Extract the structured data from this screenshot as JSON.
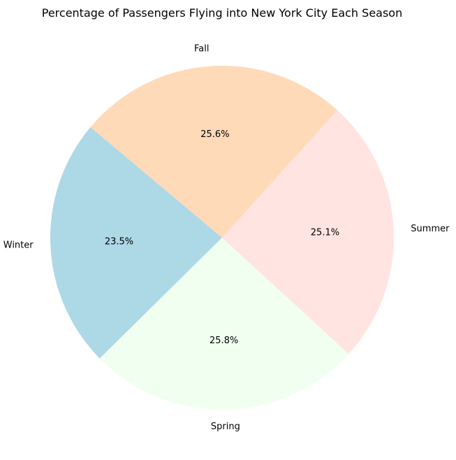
{
  "chart_data": {
    "type": "pie",
    "title": "Percentage of Passengers Flying into New York City Each Season",
    "categories": [
      "Winter",
      "Spring",
      "Summer",
      "Fall"
    ],
    "values": [
      23.5,
      25.8,
      25.1,
      25.6
    ],
    "value_labels": [
      "23.5%",
      "25.8%",
      "25.1%",
      "25.6%"
    ],
    "colors": [
      "#add8e6",
      "#f0fff0",
      "#ffe4e1",
      "#ffdab9"
    ],
    "start_angle_deg": 140,
    "direction": "counterclockwise",
    "legend": "none"
  }
}
